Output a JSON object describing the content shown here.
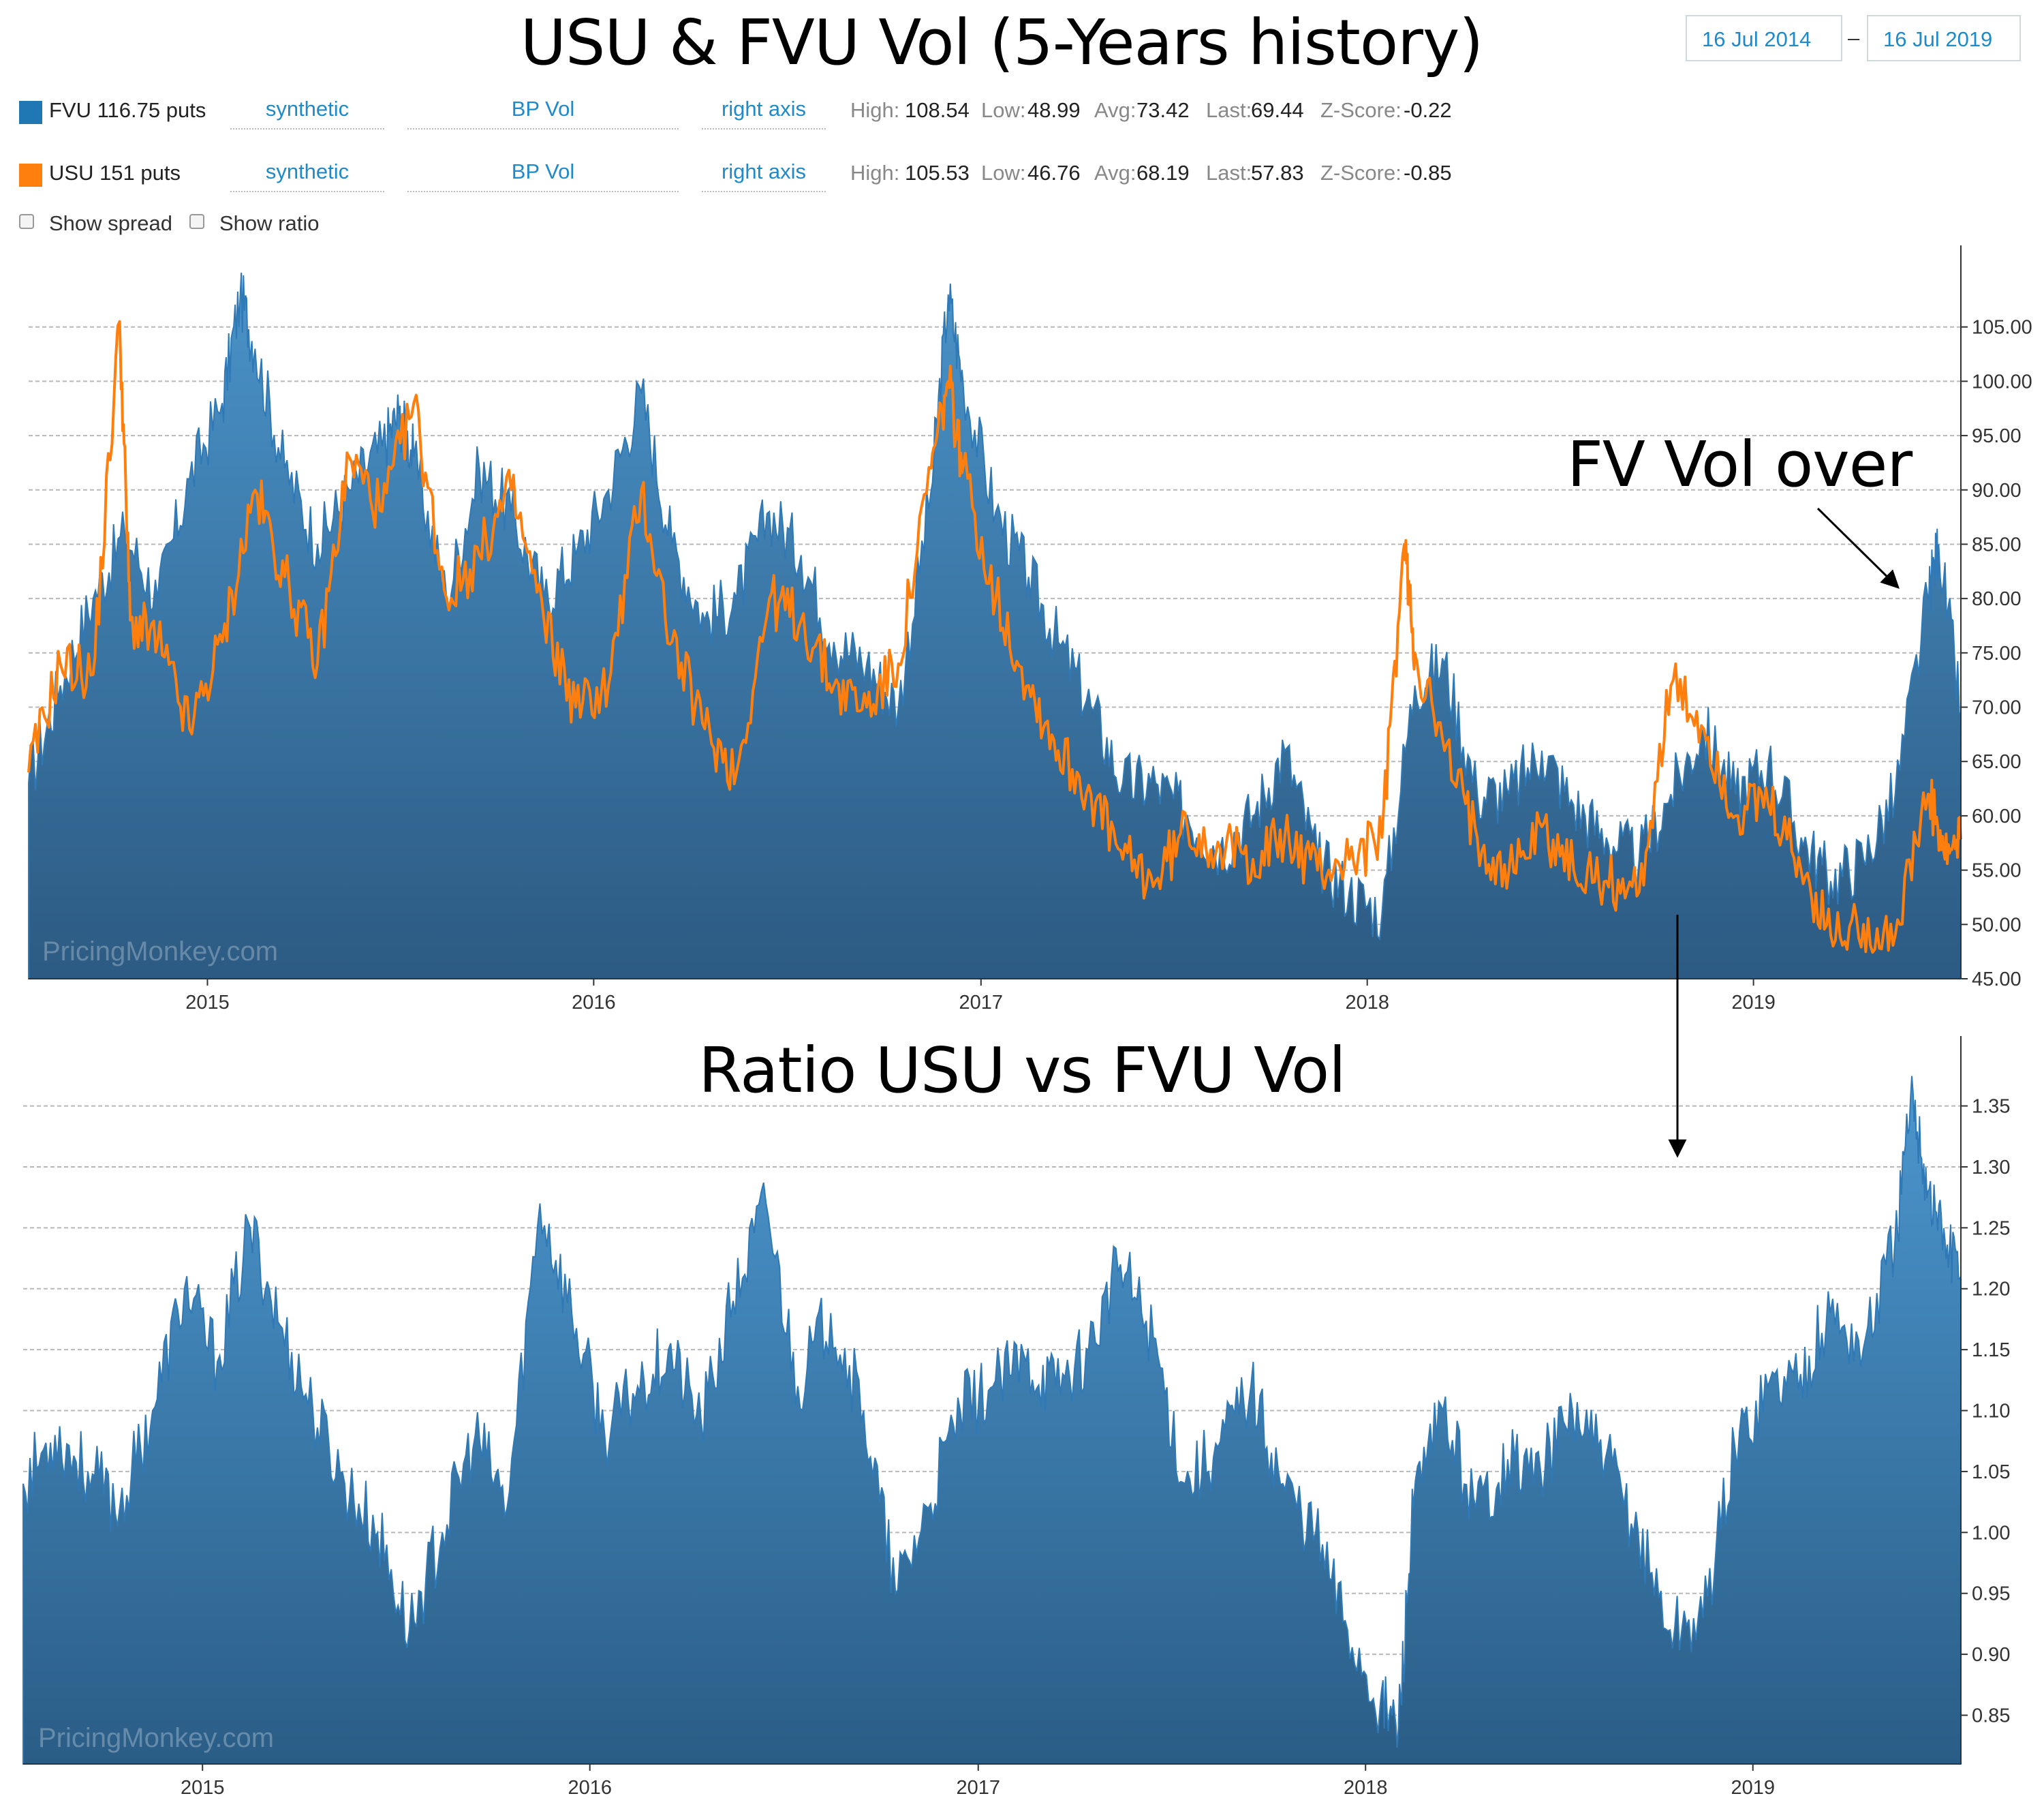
{
  "header": {
    "title": "USU & FVU Vol (5-Years history)",
    "date_from": "16 Jul 2014",
    "date_separator": "–",
    "date_to": "16 Jul 2019"
  },
  "series_controls": [
    {
      "name": "FVU 116.75 puts",
      "color": "#1f77b4",
      "type_option": "synthetic",
      "measure_option": "BP Vol",
      "axis_option": "right axis",
      "stats": {
        "high_label": "High:",
        "high": "108.54",
        "low_label": "Low:",
        "low": "48.99",
        "avg_label": "Avg:",
        "avg": "73.42",
        "last_label": "Last:",
        "last": "69.44",
        "z_label": "Z-Score:",
        "z": "-0.22"
      }
    },
    {
      "name": "USU 151 puts",
      "color": "#ff7f0e",
      "type_option": "synthetic",
      "measure_option": "BP Vol",
      "axis_option": "right axis",
      "stats": {
        "high_label": "High:",
        "high": "105.53",
        "low_label": "Low:",
        "low": "46.76",
        "avg_label": "Avg:",
        "avg": "68.19",
        "last_label": "Last:",
        "last": "57.83",
        "z_label": "Z-Score:",
        "z": "-0.85"
      }
    }
  ],
  "options": {
    "show_spread": "Show spread",
    "show_ratio": "Show ratio"
  },
  "annotation": {
    "text": "FV Vol over"
  },
  "watermark": "PricingMonkey.com",
  "lower_title": "Ratio USU vs FVU Vol",
  "colors": {
    "fvu_area_top": "#4a93c9",
    "fvu_area_bottom": "#2c5a82",
    "usu_line": "#ff7f0e",
    "ratio_area_top": "#4c97cf",
    "ratio_area_bottom": "#2a5d86",
    "accent": "#1f8ac9"
  },
  "chart_data": [
    {
      "type": "area",
      "title": "USU & FVU Vol (5-Years history)",
      "x_range": [
        "2014-07-16",
        "2019-07-16"
      ],
      "x_ticks": [
        "2015",
        "2016",
        "2017",
        "2018",
        "2019"
      ],
      "y_ticks": [
        "45.00",
        "50.00",
        "55.00",
        "60.00",
        "65.00",
        "70.00",
        "75.00",
        "80.00",
        "85.00",
        "90.00",
        "95.00",
        "100.00",
        "105.00"
      ],
      "ylim": [
        45,
        110
      ],
      "grid": true,
      "series": [
        {
          "name": "FVU 116.75 puts",
          "style": "area",
          "points": [
            [
              "2014-07-16",
              63
            ],
            [
              "2014-08-15",
              72
            ],
            [
              "2014-09-15",
              80
            ],
            [
              "2014-10-15",
              86
            ],
            [
              "2014-11-15",
              80
            ],
            [
              "2014-12-15",
              91
            ],
            [
              "2015-01-15",
              98
            ],
            [
              "2015-02-01",
              108
            ],
            [
              "2015-02-15",
              103
            ],
            [
              "2015-03-15",
              92
            ],
            [
              "2015-04-15",
              85
            ],
            [
              "2015-05-15",
              90
            ],
            [
              "2015-06-15",
              94
            ],
            [
              "2015-07-01",
              97
            ],
            [
              "2015-07-15",
              93
            ],
            [
              "2015-08-15",
              80
            ],
            [
              "2015-09-15",
              92
            ],
            [
              "2015-10-15",
              88
            ],
            [
              "2015-11-15",
              80
            ],
            [
              "2015-12-15",
              84
            ],
            [
              "2016-01-15",
              90
            ],
            [
              "2016-02-15",
              99
            ],
            [
              "2016-03-15",
              85
            ],
            [
              "2016-04-15",
              78
            ],
            [
              "2016-05-15",
              80
            ],
            [
              "2016-06-15",
              88
            ],
            [
              "2016-07-15",
              84
            ],
            [
              "2016-08-15",
              76
            ],
            [
              "2016-09-15",
              74
            ],
            [
              "2016-10-15",
              70
            ],
            [
              "2016-11-15",
              90
            ],
            [
              "2016-12-01",
              108
            ],
            [
              "2016-12-15",
              100
            ],
            [
              "2017-01-15",
              88
            ],
            [
              "2017-02-15",
              82
            ],
            [
              "2017-03-15",
              76
            ],
            [
              "2017-04-15",
              70
            ],
            [
              "2017-05-15",
              63
            ],
            [
              "2017-06-15",
              63
            ],
            [
              "2017-07-15",
              60
            ],
            [
              "2017-08-15",
              57
            ],
            [
              "2017-09-15",
              60
            ],
            [
              "2017-10-15",
              66
            ],
            [
              "2017-11-15",
              56
            ],
            [
              "2017-12-15",
              53
            ],
            [
              "2018-01-15",
              51
            ],
            [
              "2018-02-15",
              72
            ],
            [
              "2018-03-15",
              74
            ],
            [
              "2018-04-15",
              62
            ],
            [
              "2018-05-15",
              62
            ],
            [
              "2018-06-15",
              66
            ],
            [
              "2018-07-15",
              61
            ],
            [
              "2018-08-15",
              58
            ],
            [
              "2018-09-15",
              56
            ],
            [
              "2018-10-15",
              62
            ],
            [
              "2018-11-15",
              68
            ],
            [
              "2018-12-15",
              62
            ],
            [
              "2019-01-15",
              65
            ],
            [
              "2019-02-15",
              58
            ],
            [
              "2019-03-15",
              54
            ],
            [
              "2019-04-15",
              56
            ],
            [
              "2019-05-15",
              62
            ],
            [
              "2019-06-15",
              80
            ],
            [
              "2019-06-25",
              85
            ],
            [
              "2019-07-16",
              69.44
            ]
          ]
        },
        {
          "name": "USU 151 puts",
          "style": "line",
          "points": [
            [
              "2014-07-16",
              64
            ],
            [
              "2014-08-15",
              74
            ],
            [
              "2014-09-15",
              73
            ],
            [
              "2014-10-10",
              105.5
            ],
            [
              "2014-10-20",
              78
            ],
            [
              "2014-11-15",
              76
            ],
            [
              "2014-12-15",
              68
            ],
            [
              "2015-01-15",
              76
            ],
            [
              "2015-02-15",
              90
            ],
            [
              "2015-03-15",
              82
            ],
            [
              "2015-04-15",
              74
            ],
            [
              "2015-05-15",
              93
            ],
            [
              "2015-06-15",
              88
            ],
            [
              "2015-07-15",
              98
            ],
            [
              "2015-08-15",
              80
            ],
            [
              "2015-09-15",
              84
            ],
            [
              "2015-10-15",
              90
            ],
            [
              "2015-11-15",
              78
            ],
            [
              "2015-12-15",
              70
            ],
            [
              "2016-01-15",
              72
            ],
            [
              "2016-02-15",
              90
            ],
            [
              "2016-03-15",
              76
            ],
            [
              "2016-04-15",
              68
            ],
            [
              "2016-05-15",
              64
            ],
            [
              "2016-06-15",
              80
            ],
            [
              "2016-07-15",
              78
            ],
            [
              "2016-08-15",
              72
            ],
            [
              "2016-09-15",
              70
            ],
            [
              "2016-10-15",
              74
            ],
            [
              "2016-11-15",
              92
            ],
            [
              "2016-12-01",
              100
            ],
            [
              "2016-12-15",
              92
            ],
            [
              "2017-01-15",
              80
            ],
            [
              "2017-02-15",
              72
            ],
            [
              "2017-03-15",
              66
            ],
            [
              "2017-04-15",
              62
            ],
            [
              "2017-05-15",
              56
            ],
            [
              "2017-06-15",
              54
            ],
            [
              "2017-07-15",
              59
            ],
            [
              "2017-08-15",
              57
            ],
            [
              "2017-09-15",
              56
            ],
            [
              "2017-10-15",
              58
            ],
            [
              "2017-11-15",
              55
            ],
            [
              "2017-12-15",
              56
            ],
            [
              "2018-01-15",
              58
            ],
            [
              "2018-02-05",
              85
            ],
            [
              "2018-02-15",
              75
            ],
            [
              "2018-03-15",
              66
            ],
            [
              "2018-04-15",
              58
            ],
            [
              "2018-05-15",
              55
            ],
            [
              "2018-06-15",
              59
            ],
            [
              "2018-07-15",
              55
            ],
            [
              "2018-08-15",
              54
            ],
            [
              "2018-09-15",
              53
            ],
            [
              "2018-10-15",
              72
            ],
            [
              "2018-11-15",
              68
            ],
            [
              "2018-12-15",
              60
            ],
            [
              "2019-01-15",
              61
            ],
            [
              "2019-02-15",
              55
            ],
            [
              "2019-03-15",
              49
            ],
            [
              "2019-04-15",
              50
            ],
            [
              "2019-05-15",
              49
            ],
            [
              "2019-06-15",
              62
            ],
            [
              "2019-07-01",
              56
            ],
            [
              "2019-07-16",
              57.83
            ]
          ]
        }
      ]
    },
    {
      "type": "area",
      "title": "Ratio USU vs FVU Vol",
      "x_range": [
        "2014-07-16",
        "2019-07-16"
      ],
      "x_ticks": [
        "2015",
        "2016",
        "2017",
        "2018",
        "2019"
      ],
      "y_ticks": [
        "0.85",
        "0.90",
        "0.95",
        "1.00",
        "1.05",
        "1.10",
        "1.15",
        "1.20",
        "1.25",
        "1.30",
        "1.35"
      ],
      "ylim": [
        0.81,
        1.385
      ],
      "grid": true,
      "series": [
        {
          "name": "",
          "style": "area",
          "points": [
            [
              "2014-07-16",
              1.04
            ],
            [
              "2014-08-15",
              1.08
            ],
            [
              "2014-09-15",
              1.05
            ],
            [
              "2014-10-15",
              1.02
            ],
            [
              "2014-11-15",
              1.1
            ],
            [
              "2014-12-15",
              1.2
            ],
            [
              "2015-01-15",
              1.14
            ],
            [
              "2015-02-15",
              1.25
            ],
            [
              "2015-03-15",
              1.17
            ],
            [
              "2015-04-15",
              1.1
            ],
            [
              "2015-05-15",
              1.04
            ],
            [
              "2015-06-15",
              1.0
            ],
            [
              "2015-07-15",
              0.92
            ],
            [
              "2015-08-15",
              1.0
            ],
            [
              "2015-09-15",
              1.08
            ],
            [
              "2015-10-15",
              1.02
            ],
            [
              "2015-11-15",
              1.27
            ],
            [
              "2015-12-15",
              1.18
            ],
            [
              "2016-01-15",
              1.08
            ],
            [
              "2016-02-15",
              1.12
            ],
            [
              "2016-03-15",
              1.15
            ],
            [
              "2016-04-15",
              1.09
            ],
            [
              "2016-05-15",
              1.19
            ],
            [
              "2016-06-15",
              1.27
            ],
            [
              "2016-07-15",
              1.12
            ],
            [
              "2016-08-15",
              1.18
            ],
            [
              "2016-09-15",
              1.1
            ],
            [
              "2016-10-15",
              0.95
            ],
            [
              "2016-11-15",
              1.02
            ],
            [
              "2016-12-15",
              1.1
            ],
            [
              "2017-01-15",
              1.12
            ],
            [
              "2017-02-15",
              1.14
            ],
            [
              "2017-03-15",
              1.12
            ],
            [
              "2017-04-15",
              1.15
            ],
            [
              "2017-05-15",
              1.22
            ],
            [
              "2017-06-15",
              1.16
            ],
            [
              "2017-07-15",
              1.04
            ],
            [
              "2017-08-15",
              1.07
            ],
            [
              "2017-09-15",
              1.12
            ],
            [
              "2017-10-15",
              1.04
            ],
            [
              "2017-11-15",
              1.0
            ],
            [
              "2017-12-15",
              0.92
            ],
            [
              "2018-01-15",
              0.86
            ],
            [
              "2018-02-01",
              0.84
            ],
            [
              "2018-02-15",
              1.02
            ],
            [
              "2018-03-15",
              1.1
            ],
            [
              "2018-04-15",
              1.02
            ],
            [
              "2018-05-15",
              1.06
            ],
            [
              "2018-06-15",
              1.05
            ],
            [
              "2018-07-15",
              1.1
            ],
            [
              "2018-08-15",
              1.06
            ],
            [
              "2018-09-15",
              1.0
            ],
            [
              "2018-10-15",
              0.92
            ],
            [
              "2018-11-15",
              0.93
            ],
            [
              "2018-12-15",
              1.07
            ],
            [
              "2019-01-15",
              1.12
            ],
            [
              "2019-02-15",
              1.13
            ],
            [
              "2019-03-15",
              1.18
            ],
            [
              "2019-04-15",
              1.15
            ],
            [
              "2019-05-15",
              1.24
            ],
            [
              "2019-06-01",
              1.36
            ],
            [
              "2019-06-15",
              1.28
            ],
            [
              "2019-07-01",
              1.24
            ],
            [
              "2019-07-16",
              1.21
            ]
          ]
        }
      ]
    }
  ]
}
